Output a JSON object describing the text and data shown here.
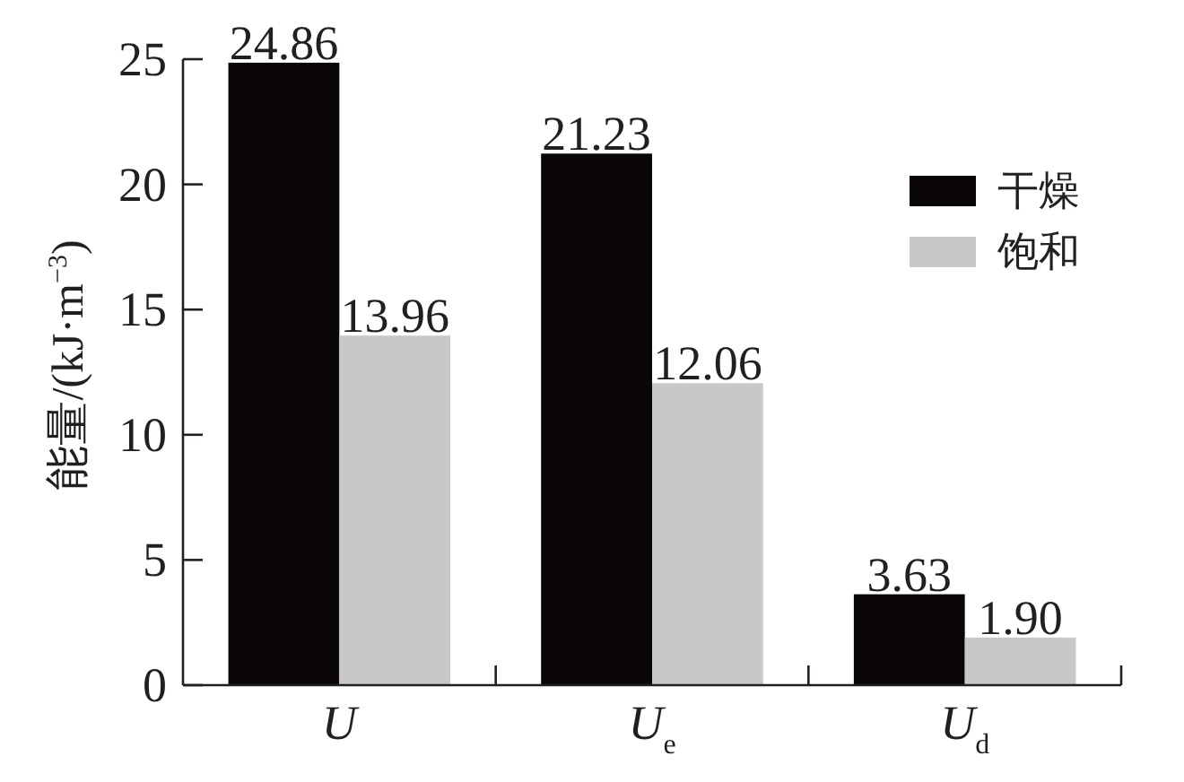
{
  "chart_data": {
    "type": "bar",
    "ylabel": "能量/(kJ·m$^{−3}$)",
    "categories": [
      "U",
      "U$_{e}$",
      "U$_{d}$"
    ],
    "series": [
      {
        "name": "干燥",
        "color": "#0b0707",
        "values": [
          24.86,
          21.23,
          3.63
        ],
        "value_labels": [
          "24.86",
          "21.23",
          "3.63"
        ]
      },
      {
        "name": "饱和",
        "color": "#c8c8c8",
        "values": [
          13.96,
          12.06,
          1.9
        ],
        "value_labels": [
          "13.96",
          "12.06",
          "1.90"
        ]
      }
    ],
    "ylim": [
      0,
      25
    ],
    "yticks": [
      0,
      5,
      10,
      15,
      20,
      25
    ],
    "legend": "top right"
  }
}
